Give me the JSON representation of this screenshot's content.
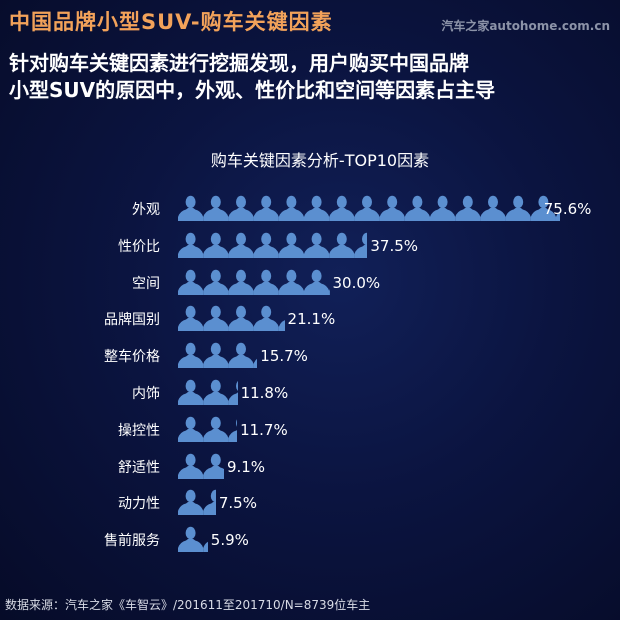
{
  "header": {
    "title": "中国品牌小型SUV-购车关键因素",
    "brand": "汽车之家autohome.com.cn",
    "subtitle_line1": "针对购车关键因素进行挖掘发现，用户购买中国品牌",
    "subtitle_line2": "小型SUV的原因中，外观、性价比和空间等因素占主导"
  },
  "colors": {
    "background": "#0b1440",
    "title": "#f2a25a",
    "icon": "#5b8fd0",
    "text": "#ffffff"
  },
  "footer": {
    "source": "数据来源：汽车之家《车智云》/201611至201710/N=8739位车主"
  },
  "chart_data": {
    "type": "bar",
    "orientation": "horizontal",
    "style": "pictograph (person icons, ~5% per icon)",
    "title": "购车关键因素分析-TOP10因素",
    "xlabel": "",
    "ylabel": "",
    "unit": "%",
    "categories": [
      "外观",
      "性价比",
      "空间",
      "品牌国别",
      "整车价格",
      "内饰",
      "操控性",
      "舒适性",
      "动力性",
      "售前服务"
    ],
    "values": [
      75.6,
      37.5,
      30.0,
      21.1,
      15.7,
      11.8,
      11.7,
      9.1,
      7.5,
      5.9
    ],
    "labels": [
      "75.6%",
      "37.5%",
      "30.0%",
      "21.1%",
      "15.7%",
      "11.8%",
      "11.7%",
      "9.1%",
      "7.5%",
      "5.9%"
    ],
    "grid": false,
    "legend": null
  }
}
